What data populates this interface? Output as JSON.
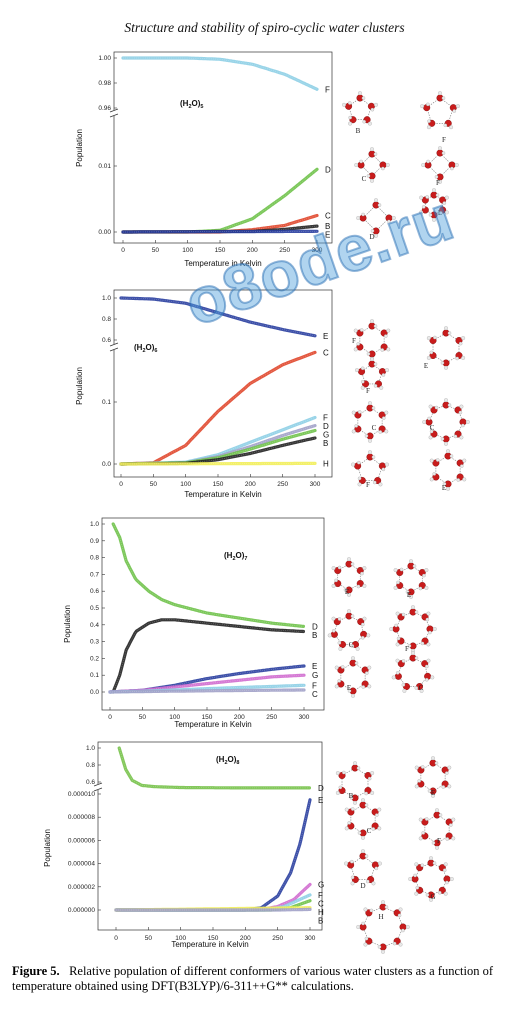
{
  "header": {
    "title": "Structure and stability of spiro-cyclic water clusters"
  },
  "watermark": {
    "text": "o8ode.ru"
  },
  "caption": {
    "label": "Figure 5.",
    "text": "Relative population of different conformers of various water clusters as a function of temperature obtained using DFT(B3LYP)/6-311++G** calculations."
  },
  "colors": {
    "F": "#8ecfe6",
    "D": "#6fc24a",
    "C": "#e0472c",
    "B": "#222222",
    "E": "#2a3fa0",
    "G": "#a1a1c8",
    "H": "#f2ee5a",
    "Gp": "#d06ccf",
    "Dg": "#77c24a"
  },
  "chart_data": [
    {
      "type": "line",
      "formula": "(H₂O)₅",
      "formula_main": "(H",
      "formula_sub1": "2",
      "formula_mid": "O)",
      "formula_sub2": "5",
      "xlabel": "Temperature in Kelvin",
      "ylabel": "Population",
      "xlim": [
        0,
        300
      ],
      "x_ticks": [
        "0",
        "50",
        "100",
        "150",
        "200",
        "250",
        "300"
      ],
      "top_ticks": [
        "1.00",
        "0.98",
        "0.96"
      ],
      "bottom_ticks": [
        "0.01",
        "0.00"
      ],
      "series": [
        {
          "name": "F",
          "color": "#8ecfe6",
          "axis": "top",
          "x": [
            0,
            100,
            150,
            200,
            250,
            300
          ],
          "y": [
            1.0,
            1.0,
            0.999,
            0.995,
            0.987,
            0.975
          ]
        },
        {
          "name": "D",
          "color": "#6fc24a",
          "axis": "bottom",
          "x": [
            0,
            100,
            150,
            200,
            250,
            300
          ],
          "y": [
            0,
            0,
            0.0005,
            0.004,
            0.011,
            0.019
          ]
        },
        {
          "name": "C",
          "color": "#e0472c",
          "axis": "bottom",
          "x": [
            0,
            150,
            200,
            250,
            300
          ],
          "y": [
            0,
            0,
            0.0007,
            0.002,
            0.005
          ]
        },
        {
          "name": "B",
          "color": "#222222",
          "axis": "bottom",
          "x": [
            0,
            200,
            250,
            300
          ],
          "y": [
            0,
            0.0002,
            0.0008,
            0.0018
          ]
        },
        {
          "name": "E",
          "color": "#2a3fa0",
          "axis": "bottom",
          "x": [
            0,
            300
          ],
          "y": [
            0,
            0.0002
          ]
        }
      ]
    },
    {
      "type": "line",
      "formula": "(H₂O)₆",
      "formula_main": "(H",
      "formula_sub1": "2",
      "formula_mid": "O)",
      "formula_sub2": "6",
      "xlabel": "Temperature in Kelvin",
      "ylabel": "Population",
      "xlim": [
        0,
        300
      ],
      "x_ticks": [
        "0",
        "50",
        "100",
        "150",
        "200",
        "250",
        "300"
      ],
      "top_ticks": [
        "1.0",
        "0.8",
        "0.6"
      ],
      "bottom_ticks": [
        "0.1",
        "0.0"
      ],
      "series": [
        {
          "name": "E",
          "color": "#2a3fa0",
          "axis": "top",
          "x": [
            0,
            50,
            100,
            150,
            200,
            250,
            300
          ],
          "y": [
            1.0,
            0.99,
            0.95,
            0.86,
            0.77,
            0.7,
            0.64
          ]
        },
        {
          "name": "C",
          "color": "#e0472c",
          "axis": "bottom",
          "x": [
            0,
            50,
            100,
            150,
            200,
            250,
            300
          ],
          "y": [
            0,
            0.002,
            0.03,
            0.085,
            0.13,
            0.16,
            0.18
          ]
        },
        {
          "name": "F",
          "color": "#8ecfe6",
          "axis": "bottom",
          "x": [
            0,
            100,
            150,
            200,
            250,
            300
          ],
          "y": [
            0,
            0.003,
            0.015,
            0.035,
            0.055,
            0.075
          ]
        },
        {
          "name": "D",
          "color": "#a1a1c8",
          "axis": "bottom",
          "x": [
            0,
            100,
            150,
            200,
            250,
            300
          ],
          "y": [
            0,
            0.002,
            0.012,
            0.028,
            0.046,
            0.062
          ]
        },
        {
          "name": "G",
          "color": "#6fc24a",
          "axis": "bottom",
          "x": [
            0,
            100,
            150,
            200,
            250,
            300
          ],
          "y": [
            0,
            0.002,
            0.01,
            0.024,
            0.04,
            0.054
          ]
        },
        {
          "name": "B",
          "color": "#222222",
          "axis": "bottom",
          "x": [
            0,
            100,
            150,
            200,
            250,
            300
          ],
          "y": [
            0,
            0.001,
            0.007,
            0.017,
            0.03,
            0.042
          ]
        },
        {
          "name": "H",
          "color": "#f2ee5a",
          "axis": "bottom",
          "x": [
            0,
            300
          ],
          "y": [
            0,
            0.001
          ]
        }
      ]
    },
    {
      "type": "line",
      "formula": "(H₂O)₇",
      "formula_main": "(H",
      "formula_sub1": "2",
      "formula_mid": "O)",
      "formula_sub2": "7",
      "xlabel": "Temperature in Kelvin",
      "ylabel": "Population",
      "xlim": [
        0,
        300
      ],
      "ylim": [
        0,
        1.0
      ],
      "x_ticks": [
        "0",
        "50",
        "100",
        "150",
        "200",
        "250",
        "300"
      ],
      "y_ticks": [
        "1.0",
        "0.9",
        "0.8",
        "0.7",
        "0.6",
        "0.5",
        "0.4",
        "0.3",
        "0.2",
        "0.1",
        "0.0"
      ],
      "series": [
        {
          "name": "D",
          "color": "#6fc24a",
          "x": [
            5,
            15,
            25,
            40,
            60,
            80,
            100,
            150,
            200,
            250,
            300
          ],
          "y": [
            1.0,
            0.92,
            0.78,
            0.67,
            0.6,
            0.55,
            0.52,
            0.47,
            0.44,
            0.41,
            0.39
          ]
        },
        {
          "name": "B",
          "color": "#222222",
          "x": [
            5,
            15,
            25,
            40,
            60,
            80,
            100,
            150,
            200,
            250,
            300
          ],
          "y": [
            0.0,
            0.1,
            0.25,
            0.36,
            0.41,
            0.43,
            0.43,
            0.41,
            0.39,
            0.37,
            0.36
          ]
        },
        {
          "name": "E",
          "color": "#2a3fa0",
          "x": [
            0,
            50,
            100,
            150,
            200,
            250,
            300
          ],
          "y": [
            0.0,
            0.01,
            0.04,
            0.08,
            0.11,
            0.135,
            0.155
          ]
        },
        {
          "name": "G",
          "color": "#d06ccf",
          "x": [
            0,
            50,
            100,
            150,
            200,
            250,
            300
          ],
          "y": [
            0.0,
            0.01,
            0.03,
            0.05,
            0.07,
            0.09,
            0.1
          ]
        },
        {
          "name": "F",
          "color": "#8ecfe6",
          "x": [
            0,
            50,
            100,
            150,
            200,
            250,
            300
          ],
          "y": [
            0.0,
            0.005,
            0.012,
            0.02,
            0.027,
            0.033,
            0.04
          ]
        },
        {
          "name": "C",
          "color": "#a1a1c8",
          "x": [
            0,
            100,
            200,
            300
          ],
          "y": [
            0.0,
            0.005,
            0.009,
            0.012
          ]
        }
      ]
    },
    {
      "type": "line",
      "formula": "(H₂O)₈",
      "formula_main": "(H",
      "formula_sub1": "2",
      "formula_mid": "O)",
      "formula_sub2": "8",
      "xlabel": "Temperature in Kelvin",
      "ylabel": "Population",
      "xlim": [
        0,
        300
      ],
      "x_ticks": [
        "0",
        "50",
        "100",
        "150",
        "200",
        "250",
        "300"
      ],
      "top_ticks": [
        "1.0",
        "0.8",
        "0.6"
      ],
      "bottom_ticks": [
        "0.000010",
        "0.000008",
        "0.000006",
        "0.000004",
        "0.000002",
        "0.000000"
      ],
      "series": [
        {
          "name": "D",
          "color": "#77c24a",
          "axis": "top",
          "x": [
            5,
            15,
            25,
            40,
            60,
            100,
            200,
            300
          ],
          "y": [
            1.0,
            0.75,
            0.62,
            0.56,
            0.545,
            0.535,
            0.53,
            0.53
          ]
        },
        {
          "name": "E",
          "color": "#2a3fa0",
          "axis": "bottom",
          "x": [
            0,
            200,
            225,
            250,
            270,
            285,
            300
          ],
          "y": [
            0,
            0,
            2e-07,
            1.2e-06,
            3.2e-06,
            5.8e-06,
            9.5e-06
          ]
        },
        {
          "name": "G",
          "color": "#d06ccf",
          "axis": "bottom",
          "x": [
            0,
            220,
            250,
            275,
            300
          ],
          "y": [
            0,
            0,
            3e-07,
            9e-07,
            2.2e-06
          ]
        },
        {
          "name": "F",
          "color": "#8ecfe6",
          "axis": "bottom",
          "x": [
            0,
            230,
            260,
            300
          ],
          "y": [
            0,
            0,
            3e-07,
            1.3e-06
          ]
        },
        {
          "name": "C",
          "color": "#6fc24a",
          "axis": "bottom",
          "x": [
            0,
            240,
            270,
            300
          ],
          "y": [
            0,
            0,
            2e-07,
            8e-07
          ]
        },
        {
          "name": "H",
          "color": "#f2ee5a",
          "axis": "bottom",
          "x": [
            0,
            300
          ],
          "y": [
            0,
            2e-07
          ]
        },
        {
          "name": "B",
          "color": "#a1a1c8",
          "axis": "bottom",
          "x": [
            0,
            250,
            300
          ],
          "y": [
            0,
            0,
            5e-08
          ]
        }
      ]
    }
  ],
  "structures": [
    {
      "labels": [
        "B",
        "F",
        "C",
        "F",
        "E",
        "D"
      ]
    },
    {
      "labels": [
        "F",
        "E",
        "F",
        "C",
        "C",
        "F",
        "E"
      ]
    },
    {
      "labels": [
        "E",
        "E",
        "C",
        "F",
        "E",
        "C"
      ]
    },
    {
      "labels": [
        "B",
        "E",
        "C",
        "F",
        "D",
        "G",
        "H"
      ]
    }
  ]
}
